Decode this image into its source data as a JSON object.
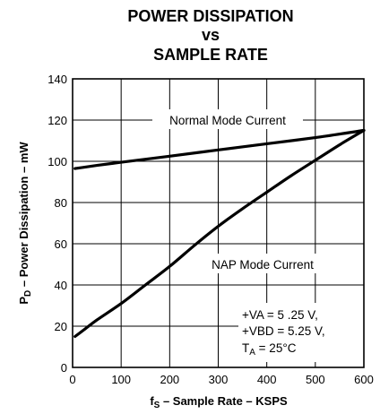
{
  "chart_data": {
    "type": "line",
    "title_lines": [
      "POWER DISSIPATION",
      "vs",
      "SAMPLE RATE"
    ],
    "xlabel": {
      "main": "f",
      "sub": "S",
      "rest": " – Sample Rate – KSPS"
    },
    "ylabel": {
      "main": "P",
      "sub": "D",
      "rest": " – Power Dissipation – mW"
    },
    "xlim": [
      0,
      600
    ],
    "ylim": [
      0,
      140
    ],
    "xticks": [
      0,
      100,
      200,
      300,
      400,
      500,
      600
    ],
    "yticks": [
      0,
      20,
      40,
      60,
      80,
      100,
      120,
      140
    ],
    "grid": true,
    "series": [
      {
        "name": "Normal Mode Current",
        "x": [
          5,
          20,
          50,
          100,
          150,
          200,
          300,
          400,
          500,
          600
        ],
        "y": [
          96.5,
          97,
          98,
          99.5,
          101,
          102.5,
          105.5,
          108.5,
          111.5,
          115
        ]
      },
      {
        "name": "NAP Mode Current",
        "x": [
          5,
          25,
          50,
          100,
          150,
          200,
          250,
          300,
          350,
          400,
          450,
          500,
          550,
          600
        ],
        "y": [
          15,
          18.5,
          23,
          31,
          40,
          49,
          59,
          68.5,
          77,
          85,
          93,
          100.5,
          108,
          115
        ]
      }
    ],
    "annotations": {
      "va": "+VA = 5 .25 V,",
      "vbd": "+VBD = 5.25 V,",
      "ta_main": "T",
      "ta_sub": "A",
      "ta_rest": " = 25°C"
    }
  }
}
